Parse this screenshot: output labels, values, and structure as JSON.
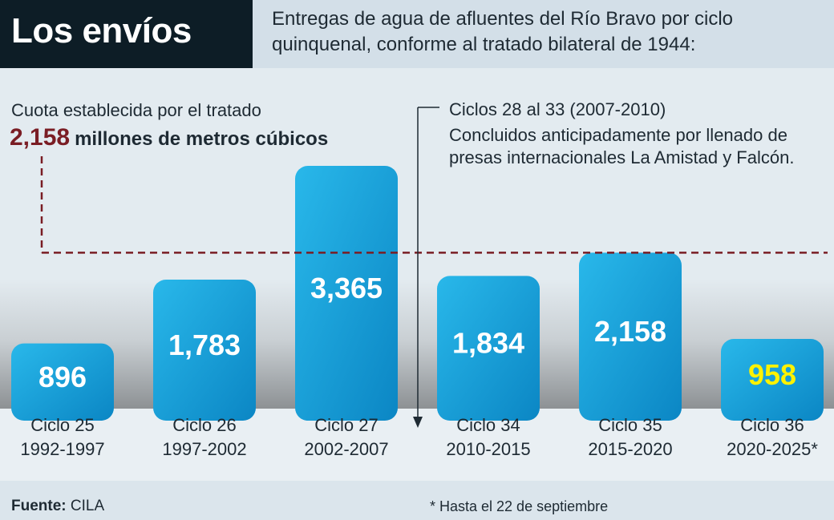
{
  "header": {
    "title": "Los envíos",
    "subtitle": "Entregas de agua de afluentes del Río Bravo por ciclo quinquenal, conforme al tratado bilateral de 1944:"
  },
  "quota": {
    "label": "Cuota establecida por el tratado",
    "value": "2,158",
    "unit": "millones de metros cúbicos"
  },
  "note": {
    "title": "Ciclos 28 al 33 (2007-2010)",
    "body": "Concluidos anticipadamente por llenado de presas internacionales La Amistad y Falcón."
  },
  "footer": {
    "source_label": "Fuente:",
    "source_value": "CILA",
    "footnote": "* Hasta el 22 de septiembre"
  },
  "colors": {
    "bar_light": "#29b8ea",
    "bar_dark": "#0b86c4",
    "quota_line": "#7a1d24",
    "highlight_value": "#fff200",
    "value_text": "#ffffff"
  },
  "chart_data": {
    "type": "bar",
    "categories": [
      "Ciclo 25 1992-1997",
      "Ciclo 26 1997-2002",
      "Ciclo 27 2002-2007",
      "Ciclo 34 2010-2015",
      "Ciclo 35 2015-2020",
      "Ciclo 36 2020-2025*"
    ],
    "cycle_names": [
      "Ciclo 25",
      "Ciclo 26",
      "Ciclo 27",
      "Ciclo 34",
      "Ciclo 35",
      "Ciclo 36"
    ],
    "periods": [
      "1992-1997",
      "1997-2002",
      "2002-2007",
      "2010-2015",
      "2015-2020",
      "2020-2025*"
    ],
    "values": [
      896,
      1783,
      3365,
      1834,
      2158,
      958
    ],
    "value_labels": [
      "896",
      "1,783",
      "3,365",
      "1,834",
      "2,158",
      "958"
    ],
    "highlight_index": 5,
    "reference_line": 2158,
    "break_marker_between": [
      "Ciclo 27",
      "Ciclo 34"
    ],
    "ylim": [
      0,
      3365
    ],
    "grid": false,
    "legend": "none"
  }
}
